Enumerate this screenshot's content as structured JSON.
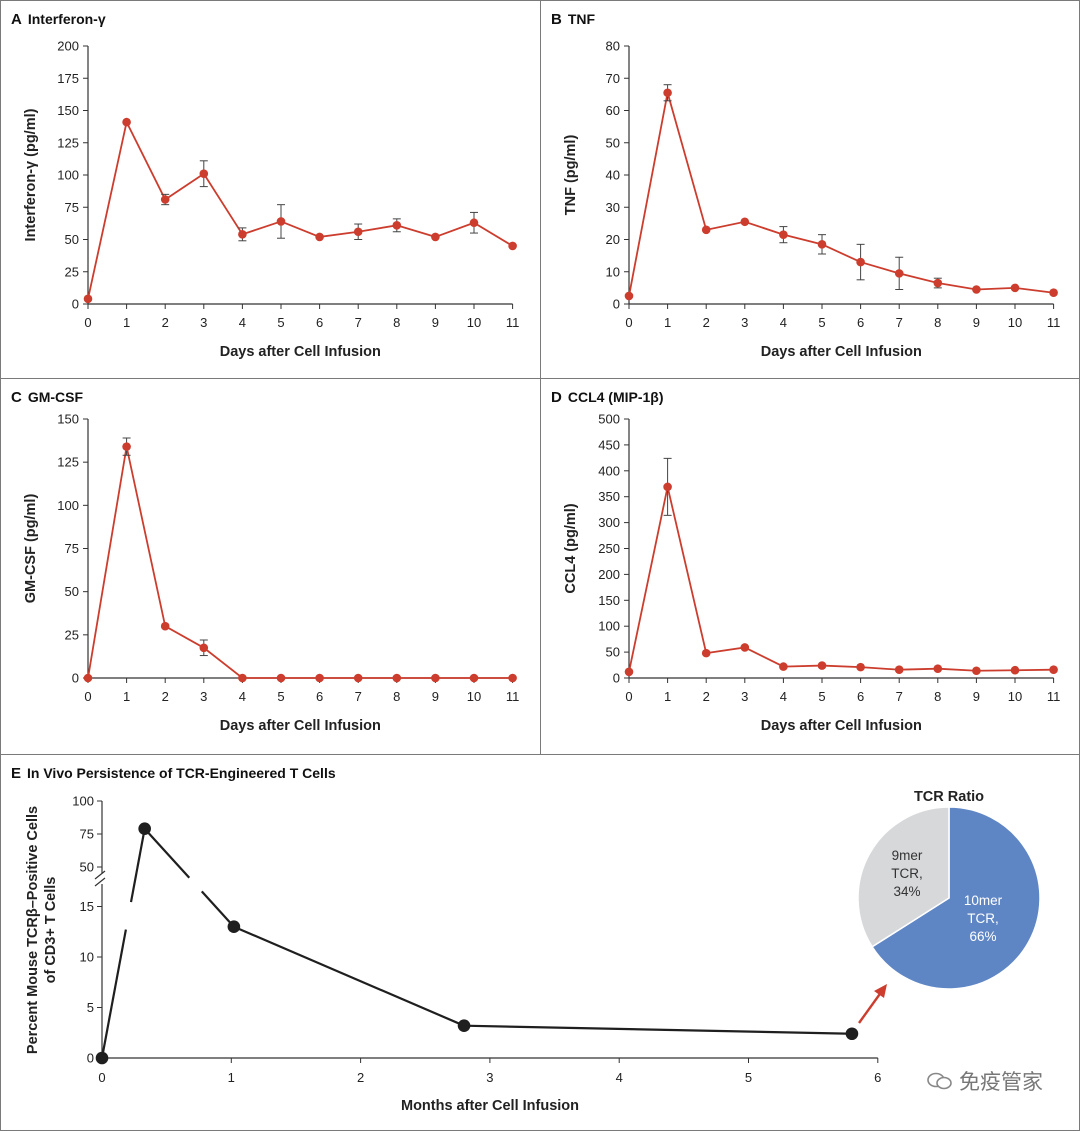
{
  "colors": {
    "series": "#cc3d2e",
    "persistence": "#1f1f1f",
    "pie_10mer": "#5f86c4",
    "pie_9mer": "#d7d8da",
    "arrow": "#cc3d2e"
  },
  "chart_data": [
    {
      "id": "A",
      "letter": "A",
      "title": "Interferon-γ",
      "type": "line",
      "xlabel": "Days after Cell Infusion",
      "ylabel": "Interferon-γ (pg/ml)",
      "x": [
        0,
        1,
        2,
        3,
        4,
        5,
        6,
        7,
        8,
        9,
        10,
        11
      ],
      "values": [
        4,
        141,
        81,
        101,
        54,
        64,
        52,
        56,
        61,
        52,
        63,
        45
      ],
      "error": [
        0,
        0,
        4,
        10,
        5,
        13,
        0,
        6,
        5,
        0,
        8,
        0
      ],
      "ylim": [
        0,
        200
      ],
      "yticks": [
        0,
        25,
        50,
        75,
        100,
        125,
        150,
        175,
        200
      ],
      "xticks": [
        0,
        1,
        2,
        3,
        4,
        5,
        6,
        7,
        8,
        9,
        10,
        11
      ]
    },
    {
      "id": "B",
      "letter": "B",
      "title": "TNF",
      "type": "line",
      "xlabel": "Days after Cell Infusion",
      "ylabel": "TNF (pg/ml)",
      "x": [
        0,
        1,
        2,
        3,
        4,
        5,
        6,
        7,
        8,
        9,
        10,
        11
      ],
      "values": [
        2.5,
        65.5,
        23,
        25.5,
        21.5,
        18.5,
        13,
        9.5,
        6.5,
        4.5,
        5,
        3.5
      ],
      "error": [
        0,
        2.5,
        0,
        0,
        2.5,
        3,
        5.5,
        5,
        1.5,
        0,
        0,
        0
      ],
      "ylim": [
        0,
        80
      ],
      "yticks": [
        0,
        10,
        20,
        30,
        40,
        50,
        60,
        70,
        80
      ],
      "xticks": [
        0,
        1,
        2,
        3,
        4,
        5,
        6,
        7,
        8,
        9,
        10,
        11
      ]
    },
    {
      "id": "C",
      "letter": "C",
      "title": "GM-CSF",
      "type": "line",
      "xlabel": "Days after Cell Infusion",
      "ylabel": "GM-CSF (pg/ml)",
      "x": [
        0,
        1,
        2,
        3,
        4,
        5,
        6,
        7,
        8,
        9,
        10,
        11
      ],
      "values": [
        0,
        134,
        30,
        17.5,
        0,
        0,
        0,
        0,
        0,
        0,
        0,
        0
      ],
      "error": [
        0,
        5,
        0,
        4.5,
        0,
        0,
        0,
        0,
        0,
        0,
        0,
        0
      ],
      "ylim": [
        0,
        150
      ],
      "yticks": [
        0,
        25,
        50,
        75,
        100,
        125,
        150
      ],
      "xticks": [
        0,
        1,
        2,
        3,
        4,
        5,
        6,
        7,
        8,
        9,
        10,
        11
      ]
    },
    {
      "id": "D",
      "letter": "D",
      "title": "CCL4 (MIP-1β)",
      "type": "line",
      "xlabel": "Days after Cell Infusion",
      "ylabel": "CCL4 (pg/ml)",
      "x": [
        0,
        1,
        2,
        3,
        4,
        5,
        6,
        7,
        8,
        9,
        10,
        11
      ],
      "values": [
        12,
        369,
        48,
        59,
        22,
        24,
        21,
        16,
        18,
        14,
        15,
        16
      ],
      "error": [
        0,
        55,
        0,
        0,
        0,
        0,
        0,
        0,
        0,
        0,
        0,
        0
      ],
      "ylim": [
        0,
        500
      ],
      "yticks": [
        0,
        50,
        100,
        150,
        200,
        250,
        300,
        350,
        400,
        450,
        500
      ],
      "xticks": [
        0,
        1,
        2,
        3,
        4,
        5,
        6,
        7,
        8,
        9,
        10,
        11
      ]
    },
    {
      "id": "E",
      "letter": "E",
      "title": "In Vivo Persistence of TCR-Engineered T Cells",
      "type": "line",
      "xlabel": "Months after Cell Infusion",
      "ylabel_lines": [
        "Percent Mouse TCRβ–Positive Cells",
        "of CD3+ T Cells"
      ],
      "x": [
        0,
        0.33,
        1.02,
        2.8,
        5.8
      ],
      "values": [
        0,
        79,
        13,
        3.2,
        2.4
      ],
      "y_axis_break": true,
      "lower_yticks": [
        0,
        5,
        10,
        15
      ],
      "upper_yticks": [
        50,
        75,
        100
      ],
      "xticks": [
        0,
        1,
        2,
        3,
        4,
        5,
        6
      ],
      "xlim": [
        0,
        6
      ]
    },
    {
      "id": "E-pie",
      "type": "pie",
      "title": "TCR Ratio",
      "slices": [
        {
          "label": "10mer",
          "sub": "TCR,",
          "pct_label": "66%",
          "value": 66
        },
        {
          "label": "9mer",
          "sub": "TCR,",
          "pct_label": "34%",
          "value": 34
        }
      ]
    }
  ],
  "watermark": {
    "text": "免疫管家"
  }
}
